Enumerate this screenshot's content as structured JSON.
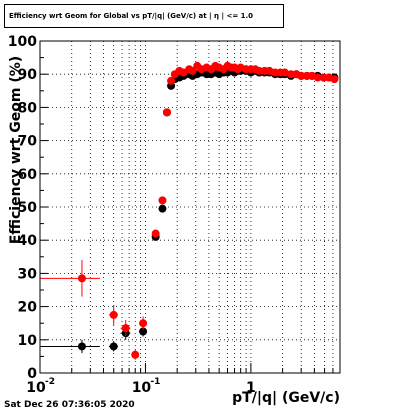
{
  "title": "Efficiency wrt Geom for Global vs pT/|q| (GeV/c) at | η | <= 1.0",
  "footer": "Sat Dec 26 07:36:05 2020",
  "chart_data": {
    "type": "scatter",
    "xlabel": "pT/|q| (GeV/c)",
    "ylabel": "Efficiency wrt Geom (%)",
    "xscale": "log",
    "xlim": [
      0.01,
      7
    ],
    "ylim": [
      0,
      100
    ],
    "grid": true,
    "xticks": [
      {
        "value": 0.01,
        "label": "10"
      },
      {
        "value": 0.1,
        "label": "10"
      },
      {
        "value": 1,
        "label": "1"
      }
    ],
    "xtick_exponents": [
      "-2",
      "-1",
      ""
    ],
    "yticks": [
      0,
      10,
      20,
      30,
      40,
      50,
      60,
      70,
      80,
      90,
      100
    ],
    "series": [
      {
        "color": "#000000",
        "points": [
          {
            "x": 0.025,
            "y": 8,
            "xlo": 0.01,
            "xhi": 0.037,
            "ylo": 6,
            "yhi": 10
          },
          {
            "x": 0.05,
            "y": 8,
            "xlo": 0.045,
            "xhi": 0.055,
            "ylo": 6.5,
            "yhi": 9.5
          },
          {
            "x": 0.065,
            "y": 12,
            "xlo": 0.058,
            "xhi": 0.072,
            "ylo": 10,
            "yhi": 14
          },
          {
            "x": 0.095,
            "y": 12.5,
            "xlo": 0.087,
            "xhi": 0.103,
            "ylo": 11,
            "yhi": 14
          },
          {
            "x": 0.125,
            "y": 41,
            "xlo": 0.118,
            "xhi": 0.132,
            "ylo": 40,
            "yhi": 42
          },
          {
            "x": 0.145,
            "y": 49.5,
            "xlo": 0.139,
            "xhi": 0.151,
            "ylo": 48.5,
            "yhi": 50.5
          },
          {
            "x": 0.16,
            "y": 78.5,
            "xlo": 0.155,
            "xhi": 0.165,
            "ylo": 77.5,
            "yhi": 79.5
          },
          {
            "x": 0.175,
            "y": 86.5,
            "xlo": 0.17,
            "xhi": 0.18,
            "ylo": 85.5,
            "yhi": 87.5
          },
          {
            "x": 0.19,
            "y": 88.5
          },
          {
            "x": 0.21,
            "y": 89
          },
          {
            "x": 0.23,
            "y": 89.5
          },
          {
            "x": 0.26,
            "y": 90
          },
          {
            "x": 0.28,
            "y": 89.5
          },
          {
            "x": 0.31,
            "y": 90
          },
          {
            "x": 0.34,
            "y": 90.5
          },
          {
            "x": 0.38,
            "y": 90
          },
          {
            "x": 0.42,
            "y": 90
          },
          {
            "x": 0.46,
            "y": 90.5
          },
          {
            "x": 0.5,
            "y": 90
          },
          {
            "x": 0.55,
            "y": 90.5
          },
          {
            "x": 0.6,
            "y": 90.5
          },
          {
            "x": 0.65,
            "y": 91
          },
          {
            "x": 0.7,
            "y": 90.5
          },
          {
            "x": 0.75,
            "y": 91
          },
          {
            "x": 0.8,
            "y": 91
          },
          {
            "x": 0.9,
            "y": 91
          },
          {
            "x": 1.0,
            "y": 90.5
          },
          {
            "x": 1.1,
            "y": 91
          },
          {
            "x": 1.2,
            "y": 90.5
          },
          {
            "x": 1.35,
            "y": 90.5
          },
          {
            "x": 1.5,
            "y": 90.5
          },
          {
            "x": 1.7,
            "y": 90
          },
          {
            "x": 1.9,
            "y": 90
          },
          {
            "x": 2.1,
            "y": 90
          },
          {
            "x": 2.4,
            "y": 89.5
          },
          {
            "x": 2.7,
            "y": 90
          },
          {
            "x": 3.0,
            "y": 89.5
          },
          {
            "x": 3.4,
            "y": 89.5
          },
          {
            "x": 3.8,
            "y": 89.5
          },
          {
            "x": 4.3,
            "y": 89.5
          },
          {
            "x": 4.9,
            "y": 89
          },
          {
            "x": 5.5,
            "y": 89
          },
          {
            "x": 6.2,
            "y": 89
          }
        ]
      },
      {
        "color": "#ff0000",
        "points": [
          {
            "x": 0.025,
            "y": 28.5,
            "xlo": 0.01,
            "xhi": 0.037,
            "ylo": 23,
            "yhi": 34
          },
          {
            "x": 0.05,
            "y": 17.5,
            "xlo": 0.045,
            "xhi": 0.055,
            "ylo": 14.5,
            "yhi": 20.5
          },
          {
            "x": 0.065,
            "y": 13.5,
            "xlo": 0.058,
            "xhi": 0.072,
            "ylo": 11,
            "yhi": 16
          },
          {
            "x": 0.08,
            "y": 5.5,
            "xlo": 0.075,
            "xhi": 0.085,
            "ylo": 4,
            "yhi": 7
          },
          {
            "x": 0.095,
            "y": 15,
            "xlo": 0.087,
            "xhi": 0.103,
            "ylo": 13,
            "yhi": 17
          },
          {
            "x": 0.125,
            "y": 42,
            "xlo": 0.118,
            "xhi": 0.132,
            "ylo": 41,
            "yhi": 43
          },
          {
            "x": 0.145,
            "y": 52,
            "xlo": 0.139,
            "xhi": 0.151,
            "ylo": 51,
            "yhi": 53
          },
          {
            "x": 0.16,
            "y": 78.5,
            "xlo": 0.155,
            "xhi": 0.165,
            "ylo": 77.5,
            "yhi": 79.5
          },
          {
            "x": 0.175,
            "y": 88,
            "xlo": 0.17,
            "xhi": 0.18,
            "ylo": 87,
            "yhi": 89
          },
          {
            "x": 0.19,
            "y": 90
          },
          {
            "x": 0.21,
            "y": 91
          },
          {
            "x": 0.23,
            "y": 90.5
          },
          {
            "x": 0.26,
            "y": 91.5
          },
          {
            "x": 0.28,
            "y": 91
          },
          {
            "x": 0.31,
            "y": 92.5
          },
          {
            "x": 0.34,
            "y": 91.5
          },
          {
            "x": 0.38,
            "y": 92
          },
          {
            "x": 0.42,
            "y": 91.5
          },
          {
            "x": 0.46,
            "y": 92.5
          },
          {
            "x": 0.5,
            "y": 92
          },
          {
            "x": 0.55,
            "y": 91.5
          },
          {
            "x": 0.6,
            "y": 92.5
          },
          {
            "x": 0.65,
            "y": 92
          },
          {
            "x": 0.7,
            "y": 92
          },
          {
            "x": 0.75,
            "y": 91.5
          },
          {
            "x": 0.8,
            "y": 92
          },
          {
            "x": 0.9,
            "y": 91.5
          },
          {
            "x": 1.0,
            "y": 91.5
          },
          {
            "x": 1.1,
            "y": 91.5
          },
          {
            "x": 1.2,
            "y": 91
          },
          {
            "x": 1.35,
            "y": 91
          },
          {
            "x": 1.5,
            "y": 91
          },
          {
            "x": 1.7,
            "y": 90.5
          },
          {
            "x": 1.9,
            "y": 90.5
          },
          {
            "x": 2.1,
            "y": 90.5
          },
          {
            "x": 2.4,
            "y": 90
          },
          {
            "x": 2.7,
            "y": 90
          },
          {
            "x": 3.0,
            "y": 89.5
          },
          {
            "x": 3.4,
            "y": 89.5
          },
          {
            "x": 3.8,
            "y": 89.5
          },
          {
            "x": 4.3,
            "y": 89
          },
          {
            "x": 4.9,
            "y": 89
          },
          {
            "x": 5.5,
            "y": 89
          },
          {
            "x": 6.2,
            "y": 88.5
          }
        ]
      }
    ]
  }
}
